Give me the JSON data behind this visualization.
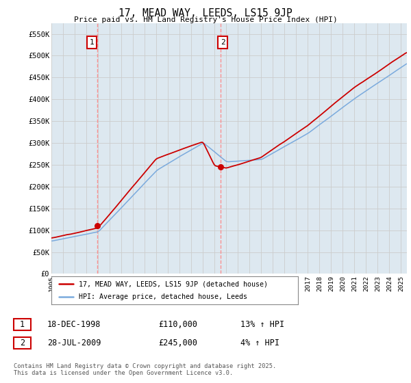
{
  "title": "17, MEAD WAY, LEEDS, LS15 9JP",
  "subtitle": "Price paid vs. HM Land Registry's House Price Index (HPI)",
  "legend_label_red": "17, MEAD WAY, LEEDS, LS15 9JP (detached house)",
  "legend_label_blue": "HPI: Average price, detached house, Leeds",
  "footer": "Contains HM Land Registry data © Crown copyright and database right 2025.\nThis data is licensed under the Open Government Licence v3.0.",
  "transaction1_date": "18-DEC-1998",
  "transaction1_price": "£110,000",
  "transaction1_hpi": "13% ↑ HPI",
  "transaction2_date": "28-JUL-2009",
  "transaction2_price": "£245,000",
  "transaction2_hpi": "4% ↑ HPI",
  "t1_year": 1998.958,
  "t1_price": 110000,
  "t2_year": 2009.542,
  "t2_price": 245000,
  "ylim": [
    0,
    575000
  ],
  "yticks": [
    0,
    50000,
    100000,
    150000,
    200000,
    250000,
    300000,
    350000,
    400000,
    450000,
    500000,
    550000
  ],
  "ytick_labels": [
    "£0",
    "£50K",
    "£100K",
    "£150K",
    "£200K",
    "£250K",
    "£300K",
    "£350K",
    "£400K",
    "£450K",
    "£500K",
    "£550K"
  ],
  "xlim_start": 1995.0,
  "xlim_end": 2025.5,
  "red_color": "#cc0000",
  "blue_color": "#7aaadd",
  "vline_color": "#ff8888",
  "grid_color": "#cccccc",
  "background_color": "#ffffff",
  "plot_bg_color": "#dde8f0"
}
